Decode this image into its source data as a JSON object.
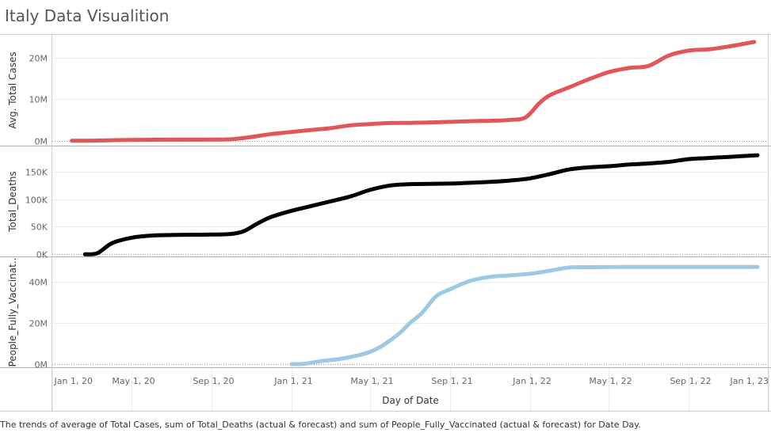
{
  "title": "Italy Data Visualition",
  "caption": "The trends of average of Total Cases, sum of Total_Deaths (actual & forecast)  and sum of People_Fully_Vaccinated (actual & forecast)  for Date Day.",
  "chart_data": [
    {
      "type": "line",
      "x_axis": {
        "label": "Day of Date",
        "range": [
          "2020-01-01",
          "2023-01-01"
        ],
        "ticks": [
          "Jan 1, 20",
          "May 1, 20",
          "Sep 1, 20",
          "Jan 1, 21",
          "May 1, 21",
          "Sep 1, 21",
          "Jan 1, 22",
          "May 1, 22",
          "Sep 1, 22",
          "Jan 1, 23"
        ],
        "tick_dates": [
          "2020-01-01",
          "2020-05-01",
          "2020-09-01",
          "2021-01-01",
          "2021-05-01",
          "2021-09-01",
          "2022-01-01",
          "2022-05-01",
          "2022-09-01",
          "2023-01-01"
        ]
      },
      "panels": [
        {
          "ylabel": "Avg. Total Cases",
          "ylim": [
            -1200000,
            25500000
          ],
          "yticks": [
            0,
            10000000,
            20000000
          ],
          "yticklabels": [
            "0M",
            "10M",
            "20M"
          ],
          "color": "#E15759",
          "x": [
            "2020-01-31",
            "2020-03-01",
            "2020-05-01",
            "2020-07-01",
            "2020-09-01",
            "2020-10-01",
            "2020-11-01",
            "2020-12-01",
            "2021-01-01",
            "2021-02-01",
            "2021-03-01",
            "2021-04-01",
            "2021-05-01",
            "2021-06-01",
            "2021-07-01",
            "2021-08-01",
            "2021-09-01",
            "2021-10-01",
            "2021-11-01",
            "2021-12-01",
            "2021-12-25",
            "2022-01-15",
            "2022-02-01",
            "2022-03-01",
            "2022-04-01",
            "2022-05-01",
            "2022-06-01",
            "2022-07-01",
            "2022-08-01",
            "2022-09-01",
            "2022-10-01",
            "2022-11-01",
            "2022-12-10"
          ],
          "y": [
            0,
            0,
            200000,
            240000,
            270000,
            350000,
            900000,
            1600000,
            2100000,
            2600000,
            3000000,
            3700000,
            4000000,
            4250000,
            4300000,
            4400000,
            4550000,
            4700000,
            4800000,
            5000000,
            5600000,
            9000000,
            11000000,
            12800000,
            14800000,
            16500000,
            17500000,
            18000000,
            20500000,
            21700000,
            22000000,
            22700000,
            23800000
          ]
        },
        {
          "ylabel": "Total_Deaths",
          "ylim": [
            -4000,
            196000
          ],
          "yticks": [
            0,
            50000,
            100000,
            150000
          ],
          "yticklabels": [
            "0K",
            "50K",
            "100K",
            "150K"
          ],
          "color": "#000000",
          "x": [
            "2020-02-20",
            "2020-03-10",
            "2020-04-01",
            "2020-05-01",
            "2020-06-01",
            "2020-07-01",
            "2020-08-01",
            "2020-09-01",
            "2020-10-01",
            "2020-10-20",
            "2020-11-10",
            "2020-12-01",
            "2021-01-01",
            "2021-02-01",
            "2021-03-01",
            "2021-04-01",
            "2021-05-01",
            "2021-06-01",
            "2021-07-01",
            "2021-08-01",
            "2021-09-01",
            "2021-10-01",
            "2021-11-01",
            "2021-12-01",
            "2022-01-01",
            "2022-02-01",
            "2022-03-01",
            "2022-04-01",
            "2022-05-01",
            "2022-06-01",
            "2022-07-01",
            "2022-08-01",
            "2022-09-01",
            "2022-10-01",
            "2022-11-01",
            "2022-12-15"
          ],
          "y": [
            0,
            2000,
            20000,
            30000,
            34000,
            35000,
            35500,
            35800,
            37000,
            42000,
            56000,
            68000,
            79000,
            88000,
            96000,
            105000,
            117000,
            125000,
            127500,
            128000,
            128500,
            130000,
            131500,
            134000,
            138000,
            146000,
            154000,
            158000,
            160000,
            163000,
            165000,
            168000,
            173000,
            175000,
            177000,
            180000
          ]
        },
        {
          "ylabel": "People_Fully_Vaccinat..",
          "ylim": [
            -1500000,
            52000000
          ],
          "yticks": [
            0,
            20000000,
            40000000
          ],
          "yticklabels": [
            "0M",
            "20M",
            "40M"
          ],
          "color": "#9DC9E4",
          "x": [
            "2021-01-01",
            "2021-01-20",
            "2021-02-15",
            "2021-03-15",
            "2021-04-15",
            "2021-05-01",
            "2021-05-20",
            "2021-06-15",
            "2021-07-01",
            "2021-07-20",
            "2021-08-10",
            "2021-09-01",
            "2021-10-01",
            "2021-11-01",
            "2021-12-01",
            "2022-01-01",
            "2022-02-01",
            "2022-03-01",
            "2022-04-01",
            "2022-06-01",
            "2022-09-01",
            "2022-12-15"
          ],
          "y": [
            0,
            200000,
            1500000,
            2500000,
            4500000,
            6000000,
            9000000,
            15000000,
            20000000,
            25000000,
            33000000,
            36500000,
            40500000,
            42500000,
            43200000,
            44000000,
            45500000,
            47000000,
            47200000,
            47300000,
            47300000,
            47300000
          ]
        }
      ],
      "grid": true,
      "legend": "none"
    }
  ]
}
